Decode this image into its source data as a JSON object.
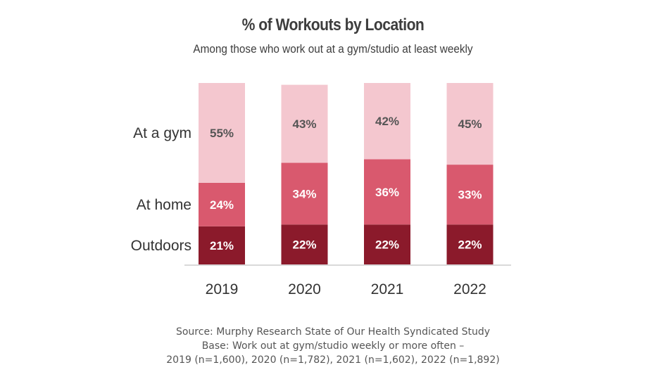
{
  "chart_data": {
    "type": "bar",
    "stacked": true,
    "title": "% of Workouts by Location",
    "subtitle": "Among those who work out at a gym/studio at least weekly",
    "categories": [
      "2019",
      "2020",
      "2021",
      "2022"
    ],
    "series": [
      {
        "name": "Outdoors",
        "values": [
          21,
          22,
          22,
          22
        ],
        "labels": [
          "21%",
          "22%",
          "22%",
          "22%"
        ],
        "color": "#8b1a2b",
        "label_color": "#ffffff"
      },
      {
        "name": "At home",
        "values": [
          24,
          34,
          36,
          33
        ],
        "labels": [
          "24%",
          "34%",
          "36%",
          "33%"
        ],
        "color": "#d9596e",
        "label_color": "#ffffff"
      },
      {
        "name": "At a gym",
        "values": [
          55,
          43,
          42,
          45
        ],
        "labels": [
          "55%",
          "43%",
          "42%",
          "45%"
        ],
        "color": "#f4c7cf",
        "label_color": "#555555"
      }
    ],
    "ylim": [
      0,
      100
    ],
    "legend_position": "left",
    "grid": false
  },
  "footer": {
    "source": "Source: Murphy Research State of Our Health Syndicated Study",
    "base_line1": "Base: Work out at gym/studio weekly or more often –",
    "base_line2": "2019 (n=1,600), 2020 (n=1,782), 2021 (n=1,602), 2022 (n=1,892)"
  }
}
